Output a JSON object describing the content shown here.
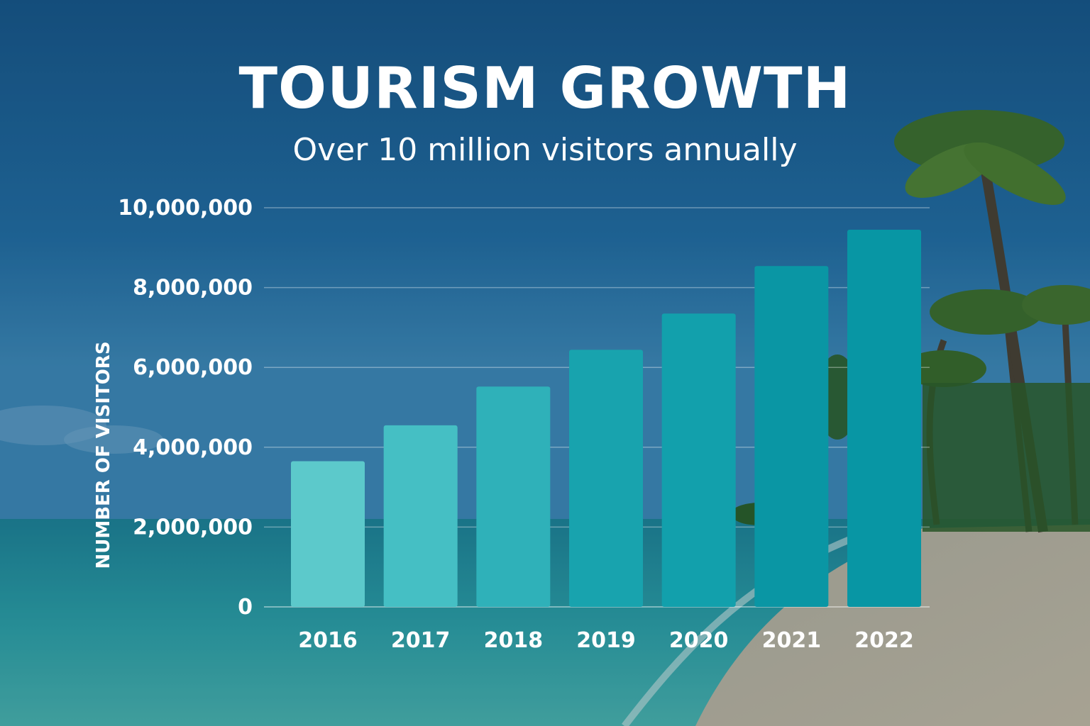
{
  "title": "TOURISM GROWTH",
  "subtitle": "Over 10 million visitors annually",
  "chart_data": {
    "type": "bar",
    "categories": [
      "2016",
      "2017",
      "2018",
      "2019",
      "2020",
      "2021",
      "2022"
    ],
    "values": [
      3650000,
      4550000,
      5520000,
      6440000,
      7350000,
      8540000,
      9450000
    ],
    "ylabel": "NUMBER OF VISITORS",
    "ylim": [
      0,
      10000000
    ],
    "yticks": [
      0,
      2000000,
      4000000,
      6000000,
      8000000,
      10000000
    ],
    "ytick_labels": [
      "0",
      "2,000,000",
      "4,000,000",
      "6,000,000",
      "8,000,000",
      "10,000,000"
    ],
    "grid": true,
    "bar_colors": [
      "#5cc9cb",
      "#45bfc4",
      "#2fb1b9",
      "#18a3ae",
      "#12a0ac",
      "#0a96a4",
      "#0896a4"
    ],
    "background": "tropical beach photo with palm trees"
  }
}
